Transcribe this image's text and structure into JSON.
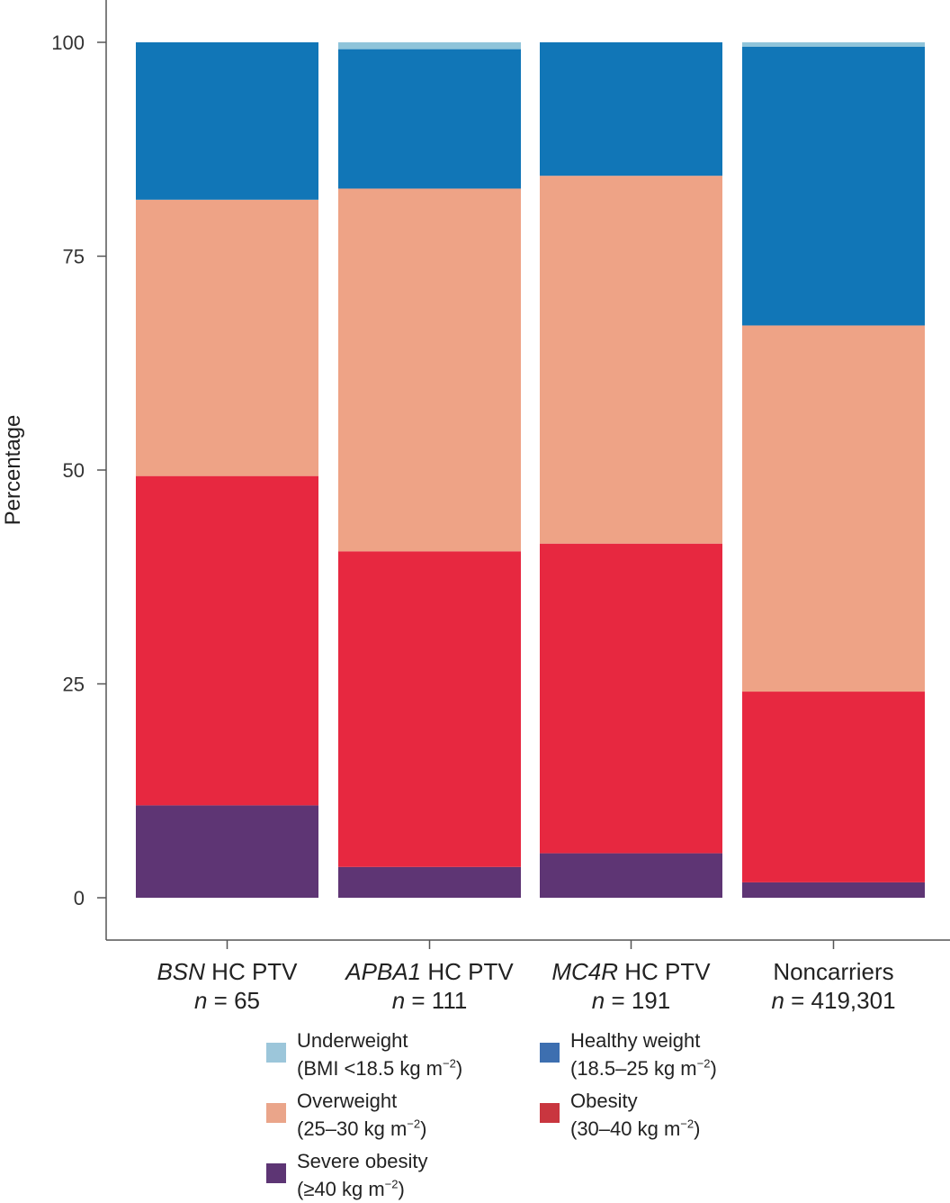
{
  "chart_data": {
    "type": "bar",
    "stacked": true,
    "title": "",
    "xlabel": "",
    "ylabel": "Percentage",
    "ylim": [
      0,
      100
    ],
    "yticks": [
      0,
      25,
      50,
      75,
      100
    ],
    "categories": [
      {
        "name_italic": "BSN",
        "name_rest": " HC PTV",
        "n_label": "n",
        "n_value": " = 65"
      },
      {
        "name_italic": "APBA1",
        "name_rest": " HC PTV",
        "n_label": "n",
        "n_value": " = 111"
      },
      {
        "name_italic": "MC4R",
        "name_rest": " HC PTV",
        "n_label": "n",
        "n_value": " = 191"
      },
      {
        "name_italic": "",
        "name_rest": "Noncarriers",
        "n_label": "n",
        "n_value": " = 419,301"
      }
    ],
    "series": [
      {
        "name": "Severe obesity",
        "color": "#5e3574",
        "values": [
          10.8,
          3.6,
          5.2,
          1.8
        ]
      },
      {
        "name": "Obesity",
        "color": "#e72840",
        "values": [
          38.5,
          36.9,
          36.2,
          22.3
        ]
      },
      {
        "name": "Overweight",
        "color": "#eea386",
        "values": [
          32.3,
          42.4,
          43.0,
          42.8
        ]
      },
      {
        "name": "Healthy weight",
        "color": "#1176b7",
        "values": [
          18.4,
          16.3,
          15.6,
          32.6
        ]
      },
      {
        "name": "Underweight",
        "color": "#8fc4da",
        "values": [
          0.0,
          0.8,
          0.0,
          0.5
        ]
      }
    ]
  },
  "legend": [
    {
      "name": "Underweight",
      "line1": "Underweight",
      "detail_prefix": "(BMI <18.5 kg m",
      "exponent": "−2",
      "detail_suffix": ")",
      "color": "#9cc6da"
    },
    {
      "name": "Healthy weight",
      "line1": "Healthy weight",
      "detail_prefix": "(18.5–25 kg m",
      "exponent": "−2",
      "detail_suffix": ")",
      "color": "#3d6fb0"
    },
    {
      "name": "Overweight",
      "line1": "Overweight",
      "detail_prefix": "(25–30 kg m",
      "exponent": "−2",
      "detail_suffix": ")",
      "color": "#eaa58a"
    },
    {
      "name": "Obesity",
      "line1": "Obesity",
      "detail_prefix": "(30–40 kg m",
      "exponent": "−2",
      "detail_suffix": ")",
      "color": "#c9363f"
    },
    {
      "name": "Severe obesity",
      "line1": "Severe obesity",
      "detail_prefix": "(≥40 kg m",
      "exponent": "−2",
      "detail_suffix": ")",
      "color": "#5d3574"
    }
  ]
}
